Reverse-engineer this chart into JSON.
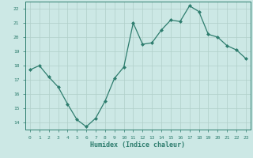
{
  "x": [
    0,
    1,
    2,
    3,
    4,
    5,
    6,
    7,
    8,
    9,
    10,
    11,
    12,
    13,
    14,
    15,
    16,
    17,
    18,
    19,
    20,
    21,
    22,
    23
  ],
  "y": [
    17.7,
    18.0,
    17.2,
    16.5,
    15.3,
    14.2,
    13.7,
    14.3,
    15.5,
    17.1,
    17.9,
    21.0,
    19.5,
    19.6,
    20.5,
    21.2,
    21.1,
    22.2,
    21.8,
    20.2,
    20.0,
    19.4,
    19.1,
    18.5
  ],
  "xlabel": "Humidex (Indice chaleur)",
  "xlim": [
    -0.5,
    23.5
  ],
  "ylim": [
    13.5,
    22.5
  ],
  "yticks": [
    14,
    15,
    16,
    17,
    18,
    19,
    20,
    21,
    22
  ],
  "xticks": [
    0,
    1,
    2,
    3,
    4,
    5,
    6,
    7,
    8,
    9,
    10,
    11,
    12,
    13,
    14,
    15,
    16,
    17,
    18,
    19,
    20,
    21,
    22,
    23
  ],
  "line_color": "#2e7d6e",
  "marker_color": "#2e7d6e",
  "bg_color": "#cce8e5",
  "grid_color": "#b0cfc9",
  "tick_label_color": "#2e7d6e",
  "xlabel_color": "#2e7d6e",
  "spine_color": "#2e7d6e"
}
